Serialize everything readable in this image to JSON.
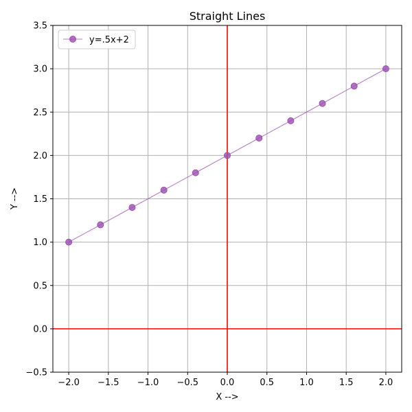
{
  "chart_data": {
    "type": "line",
    "title": "Straight Lines",
    "xlabel": "X -->",
    "ylabel": "Y -->",
    "xlim": [
      -2.2,
      2.2
    ],
    "ylim": [
      -0.5,
      3.5
    ],
    "xticks": [
      -2.0,
      -1.5,
      -1.0,
      -0.5,
      0.0,
      0.5,
      1.0,
      1.5,
      2.0
    ],
    "yticks": [
      -0.5,
      0.0,
      0.5,
      1.0,
      1.5,
      2.0,
      2.5,
      3.0,
      3.5
    ],
    "xtick_labels": [
      "−2.0",
      "−1.5",
      "−1.0",
      "−0.5",
      "0.0",
      "0.5",
      "1.0",
      "1.5",
      "2.0"
    ],
    "ytick_labels": [
      "−0.5",
      "0.0",
      "0.5",
      "1.0",
      "1.5",
      "2.0",
      "2.5",
      "3.0",
      "3.5"
    ],
    "grid": true,
    "legend": "upper-left",
    "reference_lines": {
      "color": "#ff0000",
      "x": 0,
      "y": 0
    },
    "series": [
      {
        "name": "y=.5x+2",
        "color": "#9b4fb0",
        "marker": "circle",
        "x": [
          -2.0,
          -1.6,
          -1.2,
          -0.8,
          -0.4,
          0.0,
          0.4,
          0.8,
          1.2,
          1.6,
          2.0
        ],
        "y": [
          1.0,
          1.2,
          1.4,
          1.6,
          1.8,
          2.0,
          2.2,
          2.4,
          2.6,
          2.8,
          3.0
        ]
      }
    ]
  }
}
